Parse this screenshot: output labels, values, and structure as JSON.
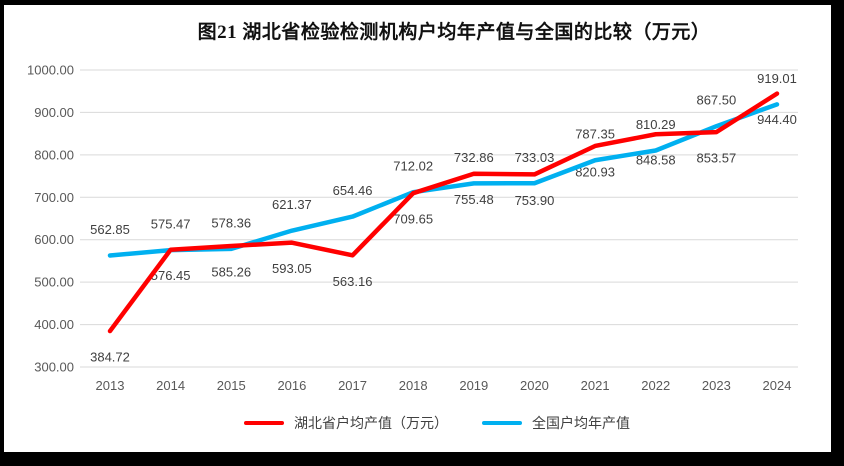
{
  "title": "图21 湖北省检验检测机构户均年产值与全国的比较（万元）",
  "chart_data": {
    "type": "line",
    "title": "图21 湖北省检验检测机构户均年产值与全国的比较（万元）",
    "categories": [
      "2013",
      "2014",
      "2015",
      "2016",
      "2017",
      "2018",
      "2019",
      "2020",
      "2021",
      "2022",
      "2023",
      "2024"
    ],
    "series": [
      {
        "id": "hubei",
        "name": "湖北省户均产值（万元）",
        "color": "#FF0000",
        "label_position": "below",
        "values": [
          384.72,
          576.45,
          585.26,
          593.05,
          563.16,
          709.65,
          755.48,
          753.9,
          820.93,
          848.58,
          853.57,
          944.4
        ]
      },
      {
        "id": "national",
        "name": "全国户均年产值",
        "color": "#00B0F0",
        "label_position": "above",
        "values": [
          562.85,
          575.47,
          578.36,
          621.37,
          654.46,
          712.02,
          732.86,
          733.03,
          787.35,
          810.29,
          867.5,
          919.01
        ]
      }
    ],
    "ylim": [
      300,
      1000
    ],
    "ytick_step": 100,
    "ytick_labels": [
      "1000.00",
      "900.00",
      "800.00",
      "700.00",
      "600.00",
      "500.00",
      "400.00",
      "300.00"
    ],
    "grid": true,
    "grid_color": "#D9D9D9",
    "axis_label_color": "#595959",
    "data_label_color": "#404040",
    "legend_position": "bottom"
  }
}
